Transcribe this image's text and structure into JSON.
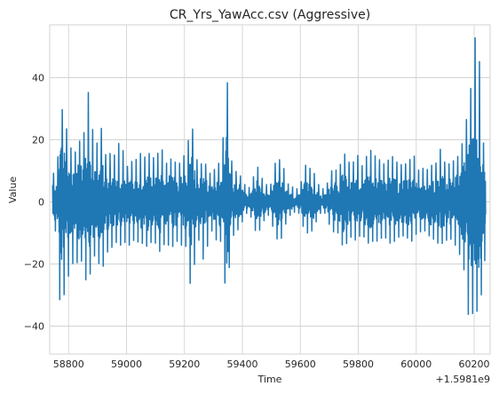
{
  "chart_data": {
    "type": "line",
    "title": "CR_Yrs_YawAcc.csv (Aggressive)",
    "xlabel": "Time",
    "ylabel": "Value",
    "x_offset_label": "+1.5981e9",
    "xlim": [
      58735,
      60255
    ],
    "ylim": [
      -49,
      57
    ],
    "xticks": [
      58800,
      59000,
      59200,
      59400,
      59600,
      59800,
      60000,
      60200
    ],
    "xtick_labels": [
      "58800",
      "59000",
      "59200",
      "59400",
      "59600",
      "59800",
      "60000",
      "60200"
    ],
    "yticks": [
      -40,
      -20,
      0,
      20,
      40
    ],
    "ytick_labels": [
      "−40",
      "−20",
      "0",
      "20",
      "40"
    ],
    "grid": true,
    "legend": "none",
    "line_color": "#1f77b4",
    "series": [
      {
        "x": [
          58745,
          58760,
          58775,
          58790,
          58805,
          58820,
          58835,
          58850,
          58865,
          58880,
          58895,
          58910,
          58925,
          58940,
          58955,
          58970,
          58985,
          59000,
          59015,
          59030,
          59045,
          59060,
          59075,
          59090,
          59105,
          59120,
          59135,
          59150,
          59165,
          59180,
          59195,
          59210,
          59225,
          59240,
          59255,
          59270,
          59285,
          59300,
          59315,
          59330,
          59345,
          59360,
          59375,
          59390,
          59405,
          59420,
          59435,
          59450,
          59465,
          59480,
          59495,
          59510,
          59525,
          59540,
          59555,
          59570,
          59585,
          59600,
          59615,
          59630,
          59645,
          59660,
          59675,
          59690,
          59705,
          59720,
          59735,
          59750,
          59765,
          59780,
          59795,
          59810,
          59825,
          59840,
          59855,
          59870,
          59885,
          59900,
          59915,
          59930,
          59945,
          59960,
          59975,
          59990,
          60005,
          60020,
          60035,
          60050,
          60065,
          60080,
          60095,
          60110,
          60125,
          60140,
          60155,
          60170,
          60185,
          60200,
          60215,
          60230,
          60240
        ],
        "high": [
          9,
          10,
          31,
          25,
          18,
          15,
          20,
          18,
          38,
          25,
          17,
          26,
          15,
          16,
          14,
          19,
          18,
          11,
          13,
          13,
          16,
          14,
          16,
          14,
          15,
          18,
          12,
          14,
          13,
          12,
          14,
          18,
          26,
          14,
          12,
          13,
          9,
          10,
          12,
          14,
          45,
          14,
          10,
          9,
          6,
          4,
          7,
          12,
          8,
          6,
          4,
          12,
          14,
          12,
          6,
          5,
          4,
          5,
          12,
          11,
          10,
          6,
          4,
          5,
          10,
          10,
          11,
          16,
          13,
          12,
          16,
          11,
          14,
          17,
          15,
          14,
          12,
          13,
          15,
          13,
          12,
          12,
          13,
          16,
          10,
          11,
          10,
          12,
          11,
          18,
          13,
          12,
          13,
          14,
          17,
          25,
          32,
          53,
          52,
          20,
          15
        ],
        "low": [
          -10,
          -9,
          -44,
          -22,
          -25,
          -17,
          -21,
          -18,
          -29,
          -20,
          -16,
          -22,
          -20,
          -14,
          -15,
          -12,
          -15,
          -12,
          -15,
          -11,
          -14,
          -13,
          -15,
          -12,
          -14,
          -17,
          -12,
          -15,
          -14,
          -12,
          -15,
          -14,
          -33,
          -13,
          -12,
          -22,
          -10,
          -9,
          -14,
          -12,
          -34,
          -14,
          -9,
          -9,
          -5,
          -3,
          -6,
          -11,
          -8,
          -5,
          -4,
          -10,
          -13,
          -11,
          -5,
          -4,
          -3,
          -4,
          -10,
          -10,
          -9,
          -5,
          -3,
          -4,
          -9,
          -10,
          -10,
          -16,
          -12,
          -11,
          -13,
          -10,
          -12,
          -14,
          -12,
          -13,
          -11,
          -12,
          -14,
          -12,
          -11,
          -11,
          -12,
          -13,
          -9,
          -10,
          -9,
          -12,
          -12,
          -14,
          -13,
          -12,
          -12,
          -15,
          -18,
          -24,
          -43,
          -32,
          -37,
          -26,
          -15
        ]
      }
    ]
  }
}
